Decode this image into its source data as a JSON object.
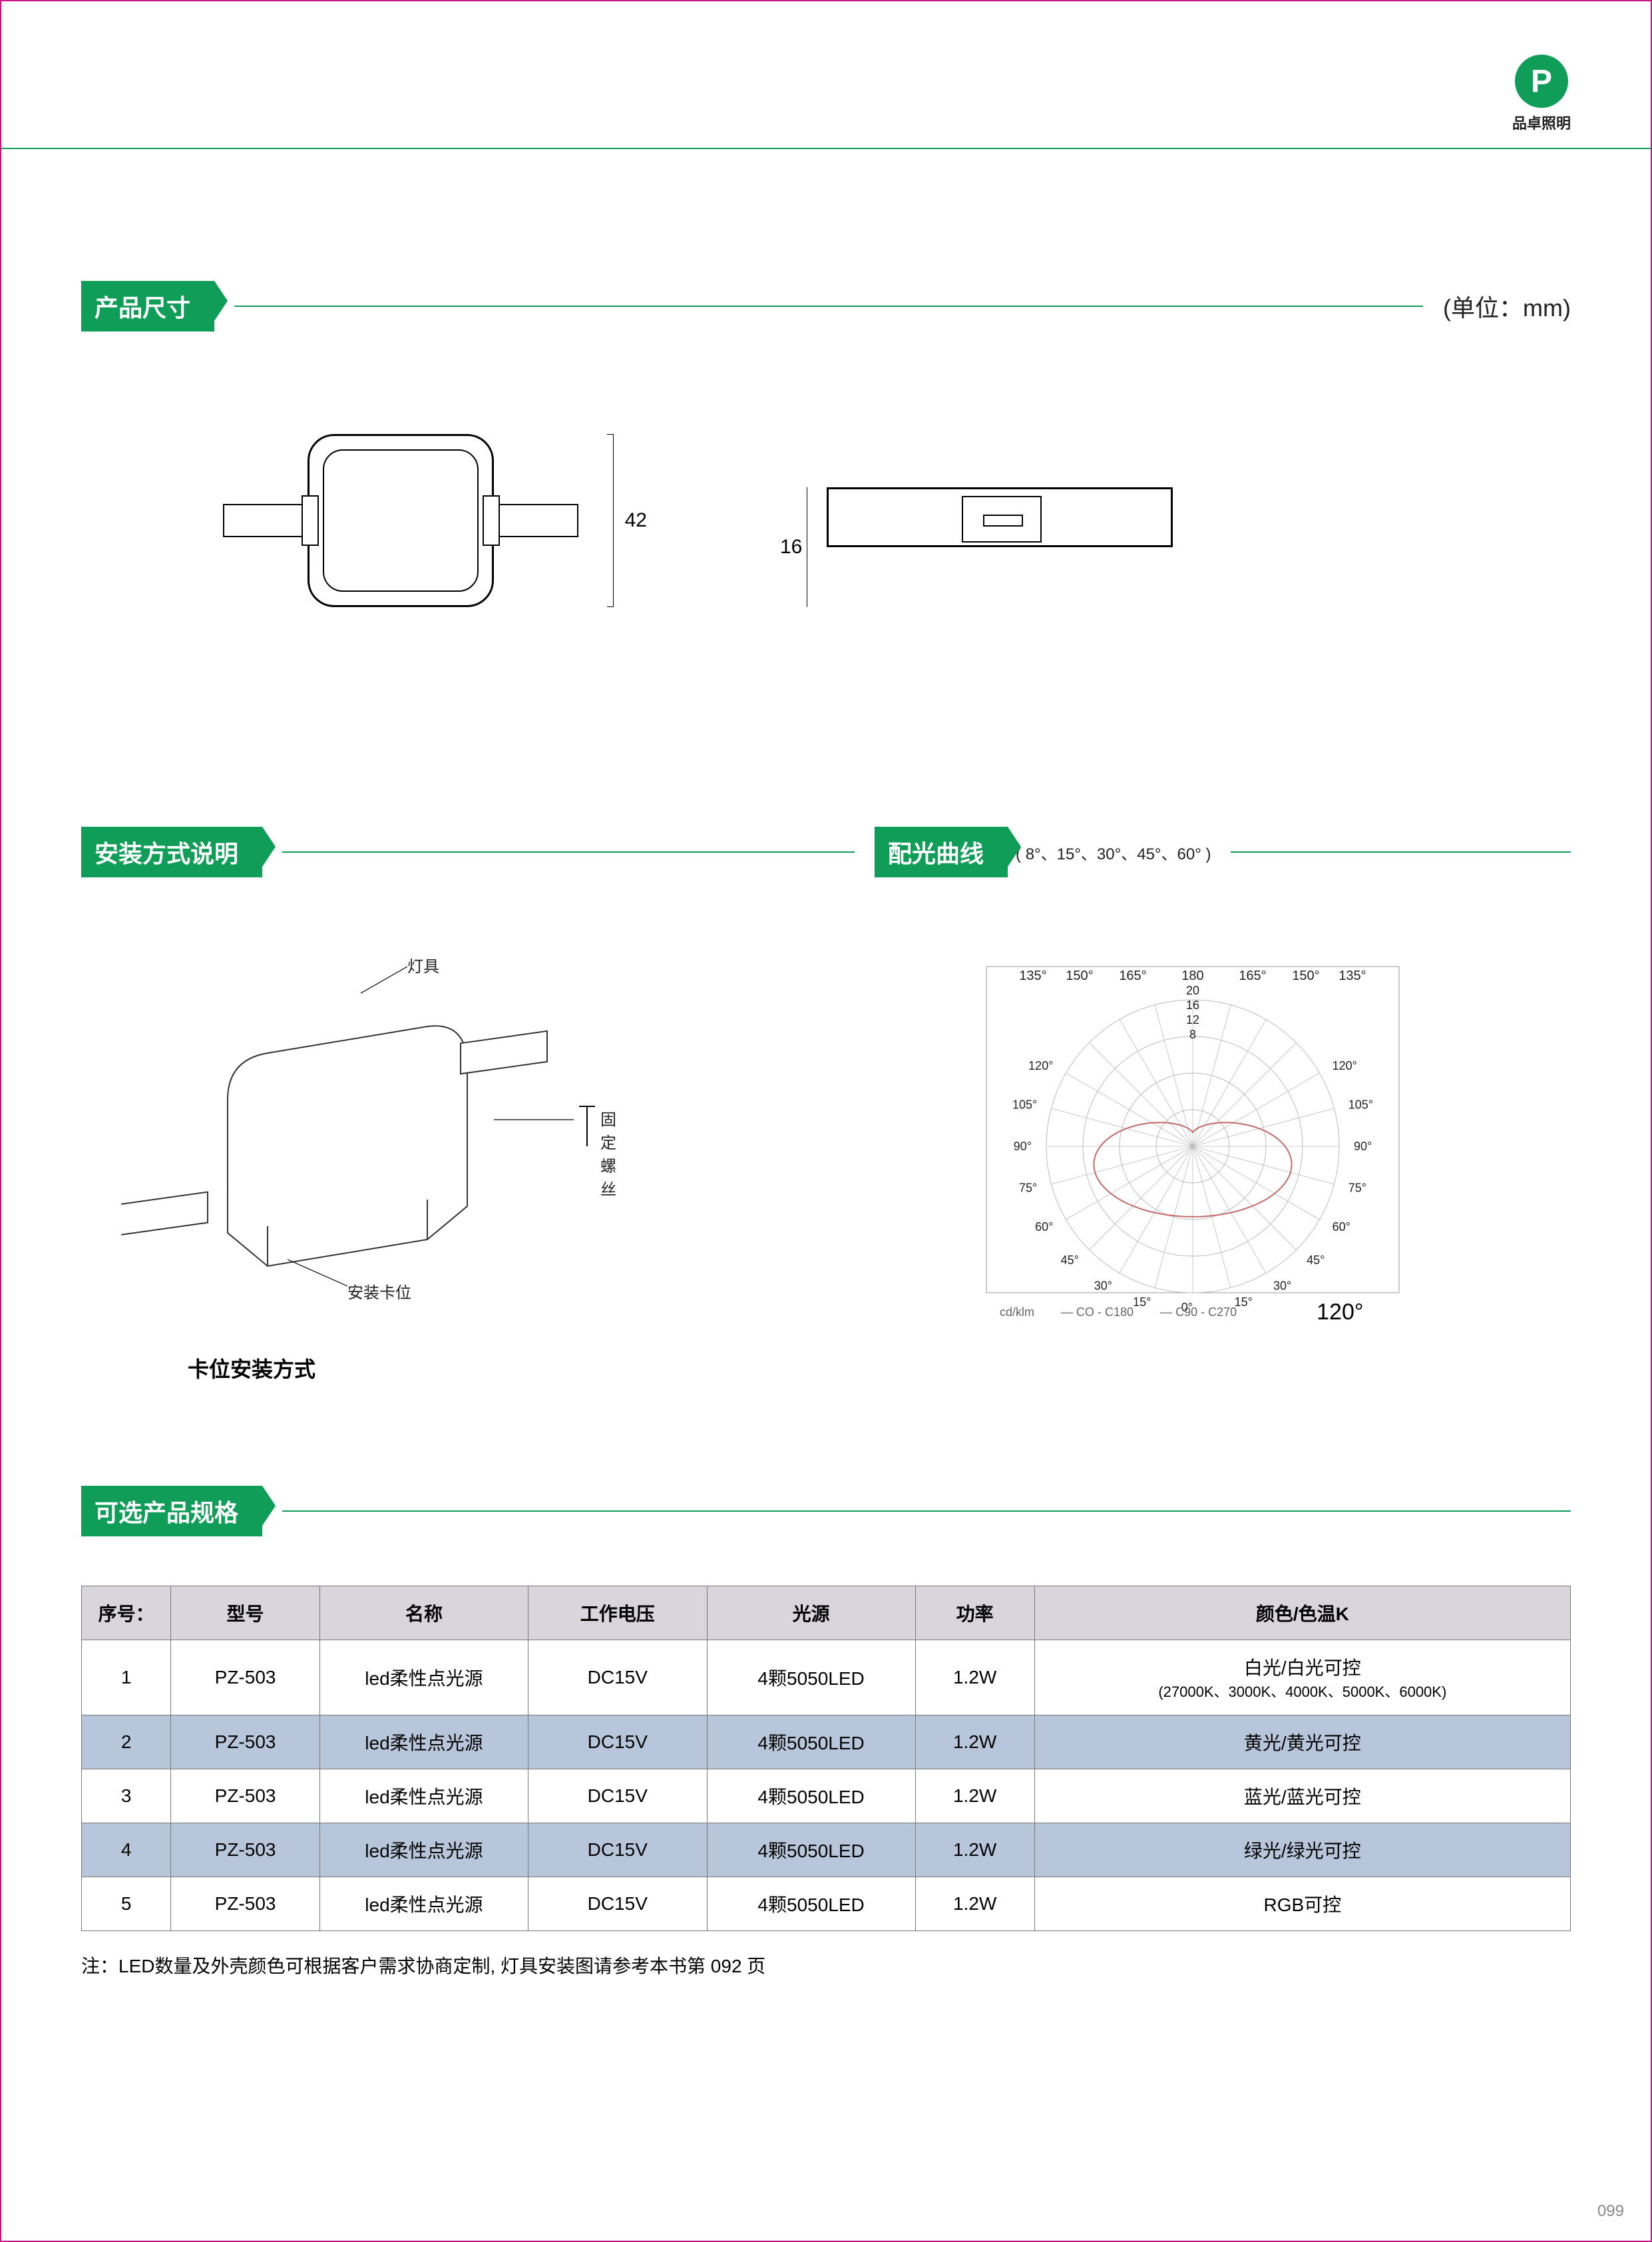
{
  "brand": {
    "logo_letter": "P",
    "name": "品卓照明"
  },
  "sections": {
    "dims_title": "产品尺寸",
    "dims_unit": "(单位：mm)",
    "install_title": "安装方式说明",
    "curve_title": "配光曲线",
    "curve_angles": "( 8°、15°、30°、45°、60° )",
    "specs_title": "可选产品规格"
  },
  "dimensions": {
    "height_mm": "42",
    "thickness_mm": "16"
  },
  "install": {
    "label_fixture": "灯具",
    "label_screw": "固定螺丝",
    "label_clip": "安装卡位",
    "caption": "卡位安装方式"
  },
  "polar": {
    "deg_labels_top": [
      "135°",
      "150°",
      "165°",
      "180",
      "165°",
      "150°",
      "135°"
    ],
    "radial_labels": [
      "20",
      "16",
      "12",
      "8"
    ],
    "side_left": [
      "120°",
      "105°",
      "90°",
      "75°",
      "60°",
      "45°",
      "30°",
      "15°",
      "0°"
    ],
    "side_right": [
      "120°",
      "105°",
      "90°",
      "75°",
      "60°",
      "45°",
      "30°"
    ],
    "bottom_start": "15°",
    "legend_unit": "cd/klm",
    "legend_a": "CO - C180",
    "legend_b": "C90 - C270",
    "beam_angle": "120°",
    "colors": {
      "grid": "#bbbbbb",
      "curve": "#c46a6a",
      "text": "#222222"
    }
  },
  "table": {
    "headers": [
      "序号：",
      "型号",
      "名称",
      "工作电压",
      "光源",
      "功率",
      "颜色/色温K"
    ],
    "col_widths_pct": [
      6,
      10,
      14,
      12,
      14,
      8,
      36
    ],
    "rows": [
      {
        "n": "1",
        "model": "PZ-503",
        "name": "led柔性点光源",
        "volt": "DC15V",
        "src": "4颗5050LED",
        "pwr": "1.2W",
        "color": "白光/白光可控",
        "color2": "(27000K、3000K、4000K、5000K、6000K)",
        "alt": false
      },
      {
        "n": "2",
        "model": "PZ-503",
        "name": "led柔性点光源",
        "volt": "DC15V",
        "src": "4颗5050LED",
        "pwr": "1.2W",
        "color": "黄光/黄光可控",
        "alt": true
      },
      {
        "n": "3",
        "model": "PZ-503",
        "name": "led柔性点光源",
        "volt": "DC15V",
        "src": "4颗5050LED",
        "pwr": "1.2W",
        "color": "蓝光/蓝光可控",
        "alt": false
      },
      {
        "n": "4",
        "model": "PZ-503",
        "name": "led柔性点光源",
        "volt": "DC15V",
        "src": "4颗5050LED",
        "pwr": "1.2W",
        "color": "绿光/绿光可控",
        "alt": true
      },
      {
        "n": "5",
        "model": "PZ-503",
        "name": "led柔性点光源",
        "volt": "DC15V",
        "src": "4颗5050LED",
        "pwr": "1.2W",
        "color": "RGB可控",
        "alt": false
      }
    ]
  },
  "note": "注：LED数量及外壳颜色可根据客户需求协商定制, 灯具安装图请参考本书第 092 页",
  "page_number": "099",
  "accent_color": "#0f9d58"
}
